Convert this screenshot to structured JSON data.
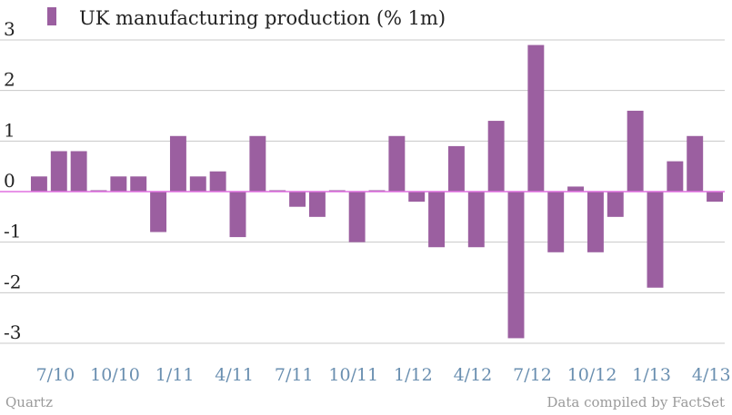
{
  "chart_data": {
    "type": "bar",
    "title": "",
    "xlabel": "",
    "ylabel": "",
    "legend": {
      "label": "UK manufacturing production (% 1m)",
      "position": "top-left"
    },
    "series": [
      {
        "name": "UK manufacturing production (% 1m)",
        "values": [
          0.3,
          0.8,
          0.8,
          0.0,
          0.3,
          0.3,
          -0.8,
          1.1,
          0.3,
          0.4,
          -0.9,
          1.1,
          0.0,
          -0.3,
          -0.5,
          0.0,
          -1.0,
          0.0,
          1.1,
          -0.2,
          -1.1,
          0.9,
          -1.1,
          1.4,
          -2.9,
          2.9,
          -1.2,
          0.1,
          -1.2,
          -0.5,
          1.6,
          -1.9,
          0.6,
          1.1,
          -0.2
        ]
      }
    ],
    "x_tick_labels": [
      "7/10",
      "10/10",
      "1/11",
      "4/11",
      "7/11",
      "10/11",
      "1/12",
      "4/12",
      "7/12",
      "10/12",
      "1/13",
      "4/13"
    ],
    "ylim": [
      -3,
      3
    ],
    "y_ticks": [
      "3",
      "2",
      "1",
      "0",
      "-1",
      "-2",
      "-3"
    ],
    "grid": true,
    "colors": {
      "bar": "#9b5fa0",
      "grid": "#c8c8c8",
      "zero_line": "#e070e0",
      "x_tick": "#6a8fb0"
    }
  },
  "footer": {
    "source": "Quartz",
    "credit": "Data compiled by FactSet"
  }
}
